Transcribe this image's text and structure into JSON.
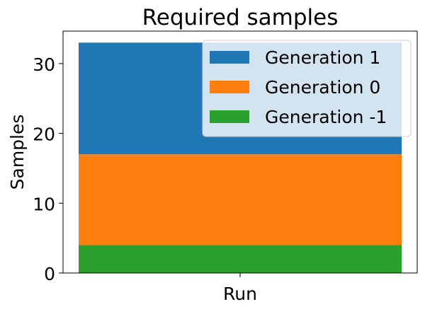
{
  "chart_data": {
    "type": "bar",
    "stacked": true,
    "title": "Required samples",
    "xlabel": "",
    "ylabel": "Samples",
    "categories": [
      "Run"
    ],
    "series": [
      {
        "name": "Generation -1",
        "values": [
          4
        ],
        "color": "#2ca02c"
      },
      {
        "name": "Generation 0",
        "values": [
          13
        ],
        "color": "#ff7f0e"
      },
      {
        "name": "Generation 1",
        "values": [
          16
        ],
        "color": "#1f77b4"
      }
    ],
    "ylim": [
      0,
      34.65
    ],
    "yticks": [
      0,
      10,
      20,
      30
    ],
    "grid": false,
    "legend": {
      "position": "top-right",
      "order": [
        "Generation 1",
        "Generation 0",
        "Generation -1"
      ]
    }
  }
}
